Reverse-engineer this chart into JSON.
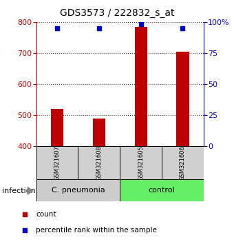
{
  "title": "GDS3573 / 222832_s_at",
  "samples": [
    "GSM321607",
    "GSM321608",
    "GSM321605",
    "GSM321606"
  ],
  "counts": [
    520,
    490,
    785,
    705
  ],
  "percentiles": [
    95,
    95,
    98,
    95
  ],
  "ylim_left": [
    400,
    800
  ],
  "ylim_right": [
    0,
    100
  ],
  "left_ticks": [
    400,
    500,
    600,
    700,
    800
  ],
  "right_ticks": [
    0,
    25,
    50,
    75,
    100
  ],
  "bar_color": "#bb0000",
  "square_color": "#0000cc",
  "bar_width": 0.3,
  "groups": [
    {
      "label": "C. pneumonia",
      "indices": [
        0,
        1
      ],
      "color": "#cccccc"
    },
    {
      "label": "control",
      "indices": [
        2,
        3
      ],
      "color": "#66ee66"
    }
  ],
  "group_label": "infection",
  "legend_count_label": "count",
  "legend_pct_label": "percentile rank within the sample",
  "title_fontsize": 10,
  "tick_fontsize": 8,
  "label_fontsize": 8,
  "sample_name_fontsize": 6,
  "group_fontsize": 8
}
